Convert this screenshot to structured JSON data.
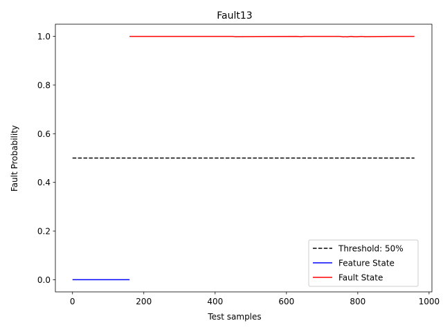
{
  "chart_data": {
    "type": "line",
    "title": "Fault13",
    "xlabel": "Test samples",
    "ylabel": "Fault Probability",
    "xlim": [
      -48,
      1008
    ],
    "ylim": [
      -0.05,
      1.05
    ],
    "xticks": [
      0,
      200,
      400,
      600,
      800,
      1000
    ],
    "yticks": [
      0.0,
      0.2,
      0.4,
      0.6,
      0.8,
      1.0
    ],
    "xtick_labels": [
      "0",
      "200",
      "400",
      "600",
      "800",
      "1000"
    ],
    "ytick_labels": [
      "0.0",
      "0.2",
      "0.4",
      "0.6",
      "0.8",
      "1.0"
    ],
    "grid": false,
    "legend_position": "lower-right",
    "series": [
      {
        "name": "Threshold: 50%",
        "color": "#000000",
        "style": "dashed",
        "x": [
          0,
          959
        ],
        "y": [
          0.5,
          0.5
        ]
      },
      {
        "name": "Feature State",
        "color": "#0000ff",
        "style": "solid",
        "x": [
          0,
          160
        ],
        "y": [
          0.0,
          0.0
        ]
      },
      {
        "name": "Fault State",
        "color": "#ff0000",
        "style": "solid",
        "x": [
          160,
          450,
          455,
          630,
          640,
          650,
          750,
          760,
          765,
          770,
          780,
          790,
          800,
          810,
          820,
          900,
          959
        ],
        "y": [
          1.0,
          1.0,
          0.999,
          1.0,
          0.999,
          1.0,
          1.0,
          0.998,
          0.999,
          0.998,
          1.0,
          0.999,
          0.999,
          1.0,
          0.999,
          1.0,
          1.0
        ]
      }
    ]
  }
}
